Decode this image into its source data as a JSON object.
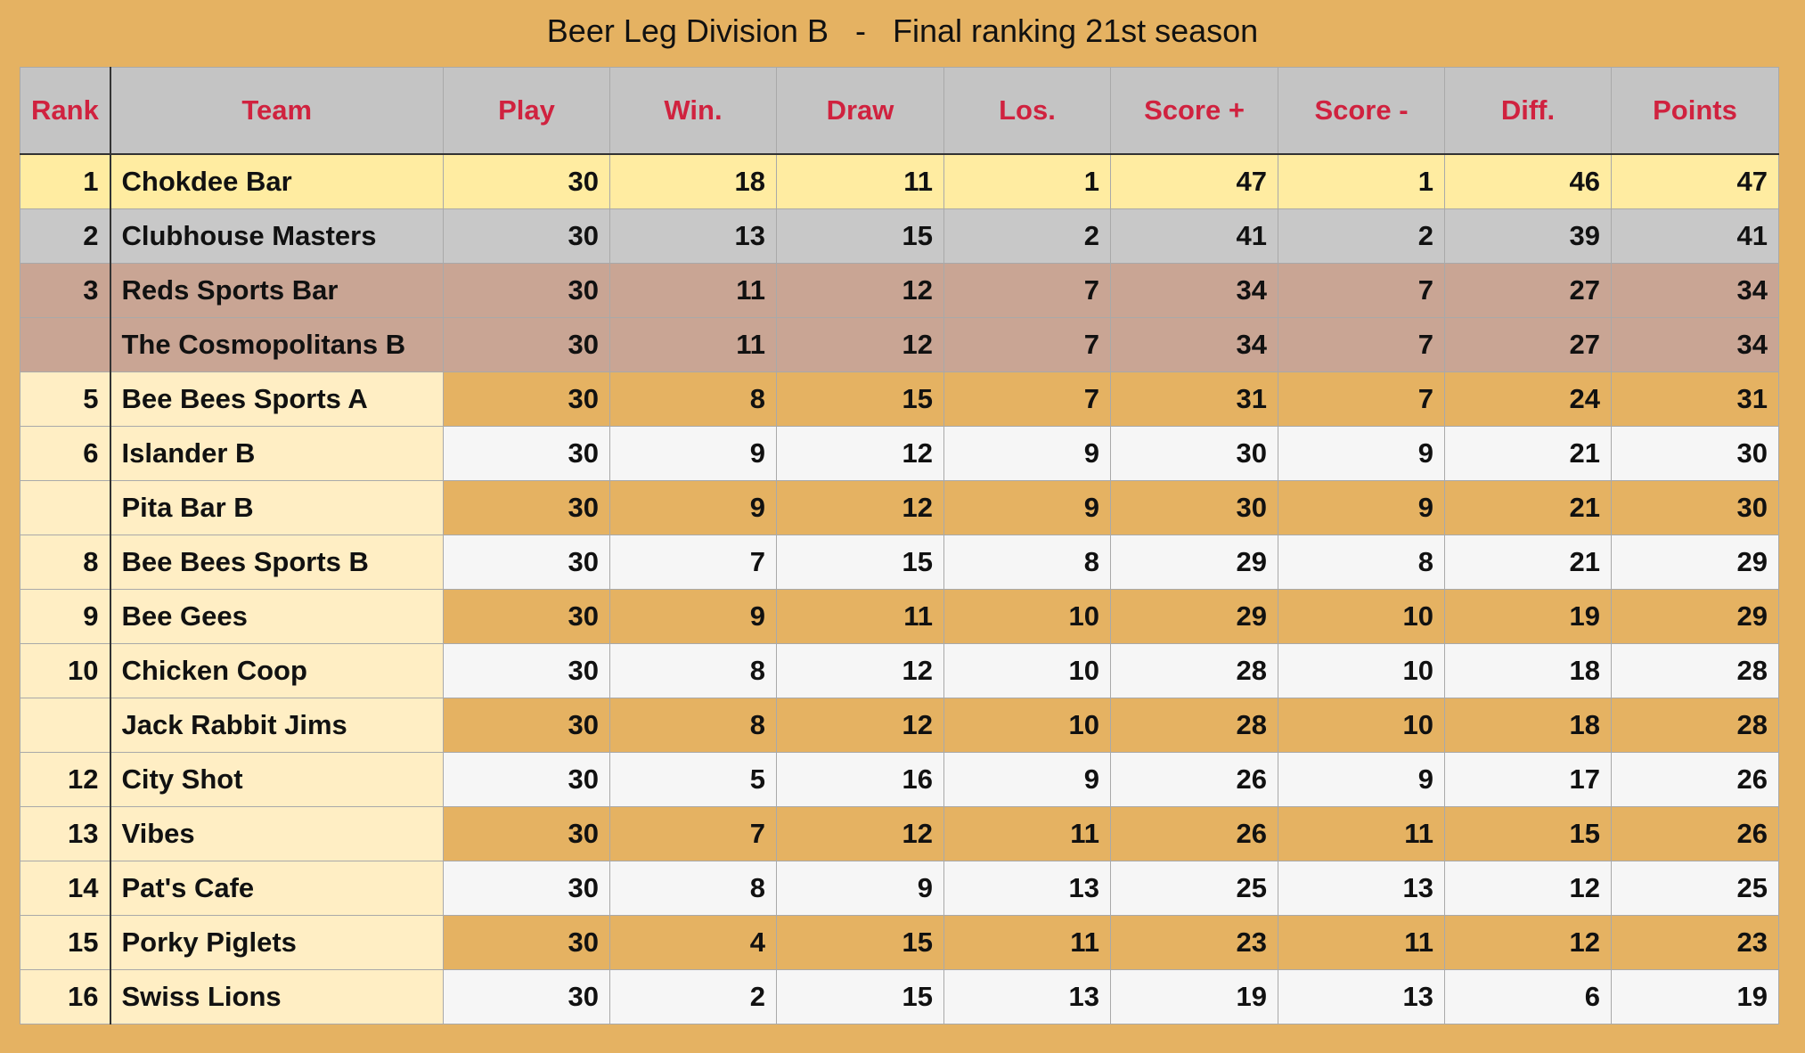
{
  "title": "Beer Leg Division B   -   Final ranking 21st season",
  "colors": {
    "background": "#e5b262",
    "header_bg": "#c4c4c4",
    "header_text": "#d0223f",
    "gold_row": "#ffeca1",
    "silver_row": "#c8c8c8",
    "bronze_row": "#c9a594",
    "name_column_bg": "#ffeec4",
    "alt_row_light": "#f6f6f6"
  },
  "columns": [
    "Rank",
    "Team",
    "Play",
    "Win.",
    "Draw",
    "Los.",
    "Score +",
    "Score -",
    "Diff.",
    "Points"
  ],
  "rows": [
    {
      "rank": "1",
      "team": "Chokdee Bar",
      "play": "30",
      "win": "18",
      "draw": "11",
      "los": "1",
      "score_plus": "47",
      "score_minus": "1",
      "diff": "46",
      "points": "47",
      "style": "gold"
    },
    {
      "rank": "2",
      "team": "Clubhouse Masters",
      "play": "30",
      "win": "13",
      "draw": "15",
      "los": "2",
      "score_plus": "41",
      "score_minus": "2",
      "diff": "39",
      "points": "41",
      "style": "silver"
    },
    {
      "rank": "3",
      "team": "Reds Sports Bar",
      "play": "30",
      "win": "11",
      "draw": "12",
      "los": "7",
      "score_plus": "34",
      "score_minus": "7",
      "diff": "27",
      "points": "34",
      "style": "bronze"
    },
    {
      "rank": "",
      "team": "The Cosmopolitans B",
      "play": "30",
      "win": "11",
      "draw": "12",
      "los": "7",
      "score_plus": "34",
      "score_minus": "7",
      "diff": "27",
      "points": "34",
      "style": "bronze"
    },
    {
      "rank": "5",
      "team": "Bee Bees Sports A",
      "play": "30",
      "win": "8",
      "draw": "15",
      "los": "7",
      "score_plus": "31",
      "score_minus": "7",
      "diff": "24",
      "points": "31",
      "style": "odd"
    },
    {
      "rank": "6",
      "team": "Islander B",
      "play": "30",
      "win": "9",
      "draw": "12",
      "los": "9",
      "score_plus": "30",
      "score_minus": "9",
      "diff": "21",
      "points": "30",
      "style": "even"
    },
    {
      "rank": "",
      "team": "Pita Bar B",
      "play": "30",
      "win": "9",
      "draw": "12",
      "los": "9",
      "score_plus": "30",
      "score_minus": "9",
      "diff": "21",
      "points": "30",
      "style": "odd"
    },
    {
      "rank": "8",
      "team": "Bee Bees Sports B",
      "play": "30",
      "win": "7",
      "draw": "15",
      "los": "8",
      "score_plus": "29",
      "score_minus": "8",
      "diff": "21",
      "points": "29",
      "style": "even"
    },
    {
      "rank": "9",
      "team": "Bee Gees",
      "play": "30",
      "win": "9",
      "draw": "11",
      "los": "10",
      "score_plus": "29",
      "score_minus": "10",
      "diff": "19",
      "points": "29",
      "style": "odd"
    },
    {
      "rank": "10",
      "team": "Chicken Coop",
      "play": "30",
      "win": "8",
      "draw": "12",
      "los": "10",
      "score_plus": "28",
      "score_minus": "10",
      "diff": "18",
      "points": "28",
      "style": "even"
    },
    {
      "rank": "",
      "team": "Jack Rabbit Jims",
      "play": "30",
      "win": "8",
      "draw": "12",
      "los": "10",
      "score_plus": "28",
      "score_minus": "10",
      "diff": "18",
      "points": "28",
      "style": "odd"
    },
    {
      "rank": "12",
      "team": "City Shot",
      "play": "30",
      "win": "5",
      "draw": "16",
      "los": "9",
      "score_plus": "26",
      "score_minus": "9",
      "diff": "17",
      "points": "26",
      "style": "even"
    },
    {
      "rank": "13",
      "team": "Vibes",
      "play": "30",
      "win": "7",
      "draw": "12",
      "los": "11",
      "score_plus": "26",
      "score_minus": "11",
      "diff": "15",
      "points": "26",
      "style": "odd"
    },
    {
      "rank": "14",
      "team": "Pat's Cafe",
      "play": "30",
      "win": "8",
      "draw": "9",
      "los": "13",
      "score_plus": "25",
      "score_minus": "13",
      "diff": "12",
      "points": "25",
      "style": "even"
    },
    {
      "rank": "15",
      "team": "Porky Piglets",
      "play": "30",
      "win": "4",
      "draw": "15",
      "los": "11",
      "score_plus": "23",
      "score_minus": "11",
      "diff": "12",
      "points": "23",
      "style": "odd"
    },
    {
      "rank": "16",
      "team": "Swiss Lions",
      "play": "30",
      "win": "2",
      "draw": "15",
      "los": "13",
      "score_plus": "19",
      "score_minus": "13",
      "diff": "6",
      "points": "19",
      "style": "even"
    }
  ]
}
